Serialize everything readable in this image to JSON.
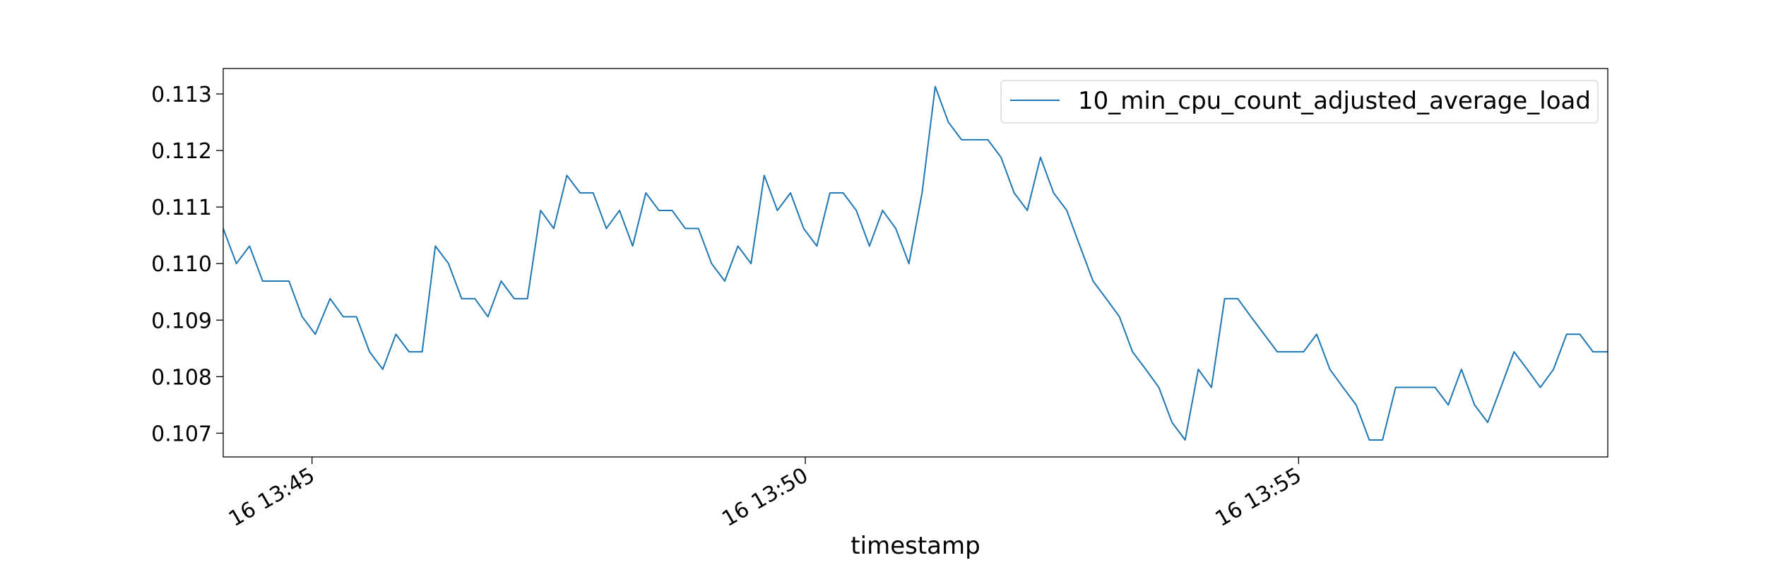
{
  "chart_data": {
    "type": "line",
    "xlabel": "timestamp",
    "ylabel": "",
    "grid": false,
    "legend_placement": "top-right",
    "x_unit": "minutes",
    "x_ticks": [
      {
        "value": "13:45",
        "label": "16 13:45"
      },
      {
        "value": "13:50",
        "label": "16 13:50"
      },
      {
        "value": "13:55",
        "label": "16 13:55"
      }
    ],
    "y_ticks": [
      0.107,
      0.108,
      0.109,
      0.11,
      0.111,
      0.112,
      0.113
    ],
    "y_tick_labels": [
      "0.107",
      "0.108",
      "0.109",
      "0.110",
      "0.111",
      "0.112",
      "0.113"
    ],
    "xlim": [
      "13:44:06",
      "13:58:08"
    ],
    "ylim": [
      0.10658,
      0.11345
    ],
    "series": [
      {
        "name": "10_min_cpu_count_adjusted_average_load",
        "color": "#1f77b4",
        "x": [
          "13:44:06",
          "13:44:14",
          "13:44:22",
          "13:44:30",
          "13:44:38",
          "13:44:46",
          "13:44:54",
          "13:45:02",
          "13:45:11",
          "13:45:19",
          "13:45:27",
          "13:45:35",
          "13:45:43",
          "13:45:51",
          "13:45:59",
          "13:46:07",
          "13:46:15",
          "13:46:23",
          "13:46:31",
          "13:46:39",
          "13:46:47",
          "13:46:55",
          "13:47:03",
          "13:47:11",
          "13:47:19",
          "13:47:27",
          "13:47:35",
          "13:47:43",
          "13:47:51",
          "13:47:59",
          "13:48:07",
          "13:48:15",
          "13:48:23",
          "13:48:31",
          "13:48:39",
          "13:48:47",
          "13:48:55",
          "13:49:03",
          "13:49:11",
          "13:49:19",
          "13:49:27",
          "13:49:35",
          "13:49:43",
          "13:49:51",
          "13:49:59",
          "13:50:07",
          "13:50:15",
          "13:50:23",
          "13:50:31",
          "13:50:39",
          "13:50:47",
          "13:50:55",
          "13:51:03",
          "13:51:11",
          "13:51:19",
          "13:51:27",
          "13:51:35",
          "13:51:43",
          "13:51:51",
          "13:51:59",
          "13:52:07",
          "13:52:15",
          "13:52:23",
          "13:52:31",
          "13:52:39",
          "13:52:47",
          "13:52:55",
          "13:53:03",
          "13:53:11",
          "13:53:19",
          "13:53:27",
          "13:53:35",
          "13:53:43",
          "13:53:51",
          "13:53:59",
          "13:54:07",
          "13:54:15",
          "13:54:23",
          "13:54:31",
          "13:54:39",
          "13:54:47",
          "13:54:55",
          "13:55:03",
          "13:55:11",
          "13:55:19",
          "13:55:27",
          "13:55:35",
          "13:55:43",
          "13:55:51",
          "13:55:59",
          "13:56:07",
          "13:56:15",
          "13:56:23",
          "13:56:31",
          "13:56:39",
          "13:56:47",
          "13:56:55",
          "13:57:03",
          "13:57:11",
          "13:57:19",
          "13:57:27",
          "13:57:35",
          "13:57:43",
          "13:57:51",
          "13:57:59",
          "13:58:08"
        ],
        "values": [
          0.11062,
          0.11,
          0.11031,
          0.10969,
          0.10969,
          0.10969,
          0.10906,
          0.10875,
          0.10938,
          0.10906,
          0.10906,
          0.10844,
          0.10813,
          0.10875,
          0.10844,
          0.10844,
          0.11031,
          0.11,
          0.10938,
          0.10938,
          0.10906,
          0.10969,
          0.10938,
          0.10938,
          0.11094,
          0.11062,
          0.11156,
          0.11125,
          0.11125,
          0.11062,
          0.11094,
          0.11031,
          0.11125,
          0.11094,
          0.11094,
          0.11062,
          0.11062,
          0.11,
          0.10969,
          0.11031,
          0.11,
          0.11156,
          0.11094,
          0.11125,
          0.11062,
          0.11031,
          0.11125,
          0.11125,
          0.11094,
          0.11031,
          0.11094,
          0.11062,
          0.11,
          0.11125,
          0.11313,
          0.1125,
          0.11219,
          0.11219,
          0.11219,
          0.11188,
          0.11125,
          0.11094,
          0.11188,
          0.11125,
          0.11094,
          0.11031,
          0.10969,
          0.10938,
          0.10906,
          0.10844,
          0.10813,
          0.10781,
          0.10719,
          0.10688,
          0.10813,
          0.10781,
          0.10938,
          0.10938,
          0.10906,
          0.10875,
          0.10844,
          0.10844,
          0.10844,
          0.10875,
          0.10813,
          0.10781,
          0.1075,
          0.10688,
          0.10688,
          0.10781,
          0.10781,
          0.10781,
          0.10781,
          0.1075,
          0.10813,
          0.1075,
          0.10719,
          0.10781,
          0.10844,
          0.10813,
          0.10781,
          0.10813,
          0.10875,
          0.10875,
          0.10844,
          0.10844
        ]
      }
    ]
  }
}
